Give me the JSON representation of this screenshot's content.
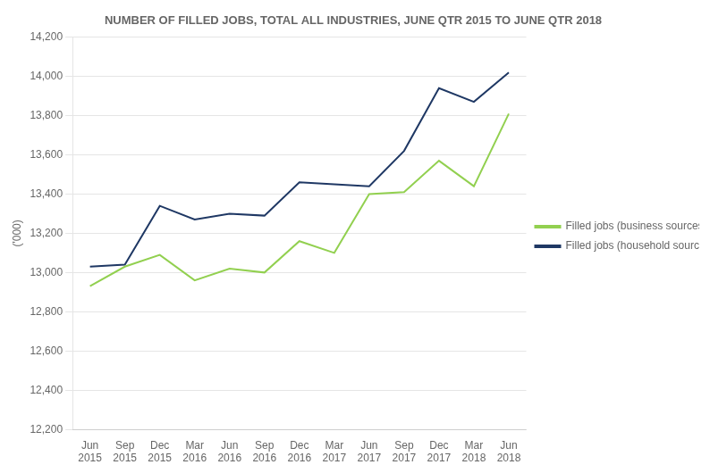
{
  "chart_data": {
    "type": "line",
    "title": "NUMBER OF FILLED JOBS, TOTAL ALL INDUSTRIES, JUNE QTR 2015 TO JUNE QTR 2018",
    "ylabel": "('000)",
    "categories": [
      "Jun\n2015",
      "Sep\n2015",
      "Dec\n2015",
      "Mar\n2016",
      "Jun\n2016",
      "Sep\n2016",
      "Dec\n2016",
      "Mar\n2017",
      "Jun\n2017",
      "Sep\n2017",
      "Dec\n2017",
      "Mar\n2018",
      "Jun\n2018"
    ],
    "series": [
      {
        "name": "Filled jobs (business sources)",
        "color": "#92d050",
        "values": [
          12930,
          13030,
          13090,
          12960,
          13020,
          13000,
          13160,
          13100,
          13400,
          13410,
          13570,
          13440,
          13810
        ]
      },
      {
        "name": "Filled jobs (household sources)",
        "color": "#1f3864",
        "values": [
          13030,
          13040,
          13340,
          13270,
          13300,
          13290,
          13460,
          13450,
          13440,
          13620,
          13940,
          13870,
          14020
        ]
      }
    ],
    "ylim": [
      12200,
      14200
    ],
    "yticks": [
      {
        "value": 12200,
        "label": "12,200"
      },
      {
        "value": 12400,
        "label": "12,400"
      },
      {
        "value": 12600,
        "label": "12,600"
      },
      {
        "value": 12800,
        "label": "12,800"
      },
      {
        "value": 13000,
        "label": "13,000"
      },
      {
        "value": 13200,
        "label": "13,200"
      },
      {
        "value": 13400,
        "label": "13,400"
      },
      {
        "value": 13600,
        "label": "13,600"
      },
      {
        "value": 13800,
        "label": "13,800"
      },
      {
        "value": 14000,
        "label": "14,000"
      },
      {
        "value": 14200,
        "label": "14,200"
      }
    ],
    "grid": "y",
    "legend": "right"
  }
}
